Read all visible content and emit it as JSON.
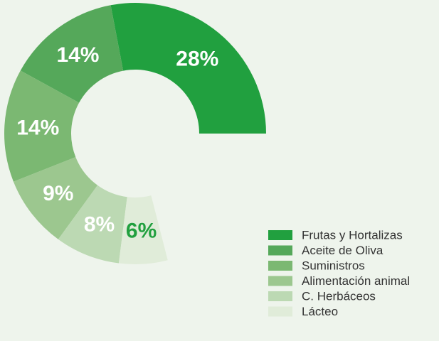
{
  "chart_data": {
    "type": "donut",
    "categories": [
      "Frutas y Hortalizas",
      "Aceite de Oliva",
      "Suministros",
      "Alimentación animal",
      "C. Herbáceos",
      "Lácteo"
    ],
    "values": [
      28,
      14,
      14,
      9,
      8,
      6
    ],
    "value_labels": [
      "28%",
      "14%",
      "14%",
      "9%",
      "8%",
      "6%"
    ],
    "colors": [
      "#21a03f",
      "#55a85a",
      "#7bb872",
      "#9cc78f",
      "#bcd9b3",
      "#e0ecd9"
    ],
    "label_colors": [
      "#ffffff",
      "#ffffff",
      "#ffffff",
      "#ffffff",
      "#ffffff",
      "#21a03f"
    ],
    "legend": "bottom-right"
  }
}
